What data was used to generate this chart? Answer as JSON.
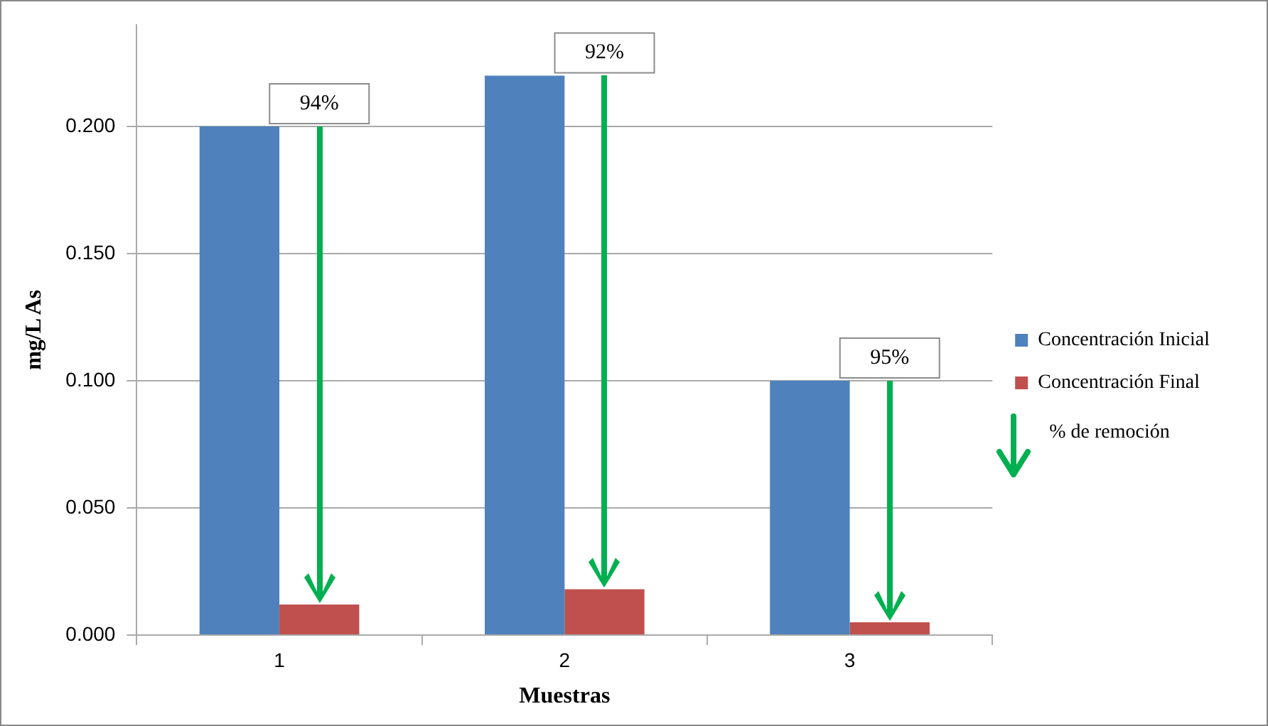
{
  "chart_data": {
    "type": "bar",
    "xlabel": "Muestras",
    "ylabel": "mg/L As",
    "categories": [
      "1",
      "2",
      "3"
    ],
    "series": [
      {
        "name": "Concentración Inicial",
        "color": "#4f81bd",
        "values": [
          0.2,
          0.22,
          0.1
        ]
      },
      {
        "name": "Concentración Final",
        "color": "#c0504d",
        "values": [
          0.012,
          0.018,
          0.005
        ]
      }
    ],
    "ylim": [
      0,
      0.24
    ],
    "yticks": [
      {
        "value": 0,
        "label": "0.000"
      },
      {
        "value": 0.05,
        "label": "0.050"
      },
      {
        "value": 0.1,
        "label": "0.100"
      },
      {
        "value": 0.15,
        "label": "0.150"
      },
      {
        "value": 0.2,
        "label": "0.200"
      }
    ],
    "grid": "y",
    "legend": "right",
    "annotations": [
      {
        "text": "94%",
        "x": "1",
        "y": 0.2
      },
      {
        "text": "92%",
        "x": "2",
        "y": 0.22
      },
      {
        "text": "95%",
        "x": "3",
        "y": 0.1
      },
      "% de remoción"
    ]
  }
}
